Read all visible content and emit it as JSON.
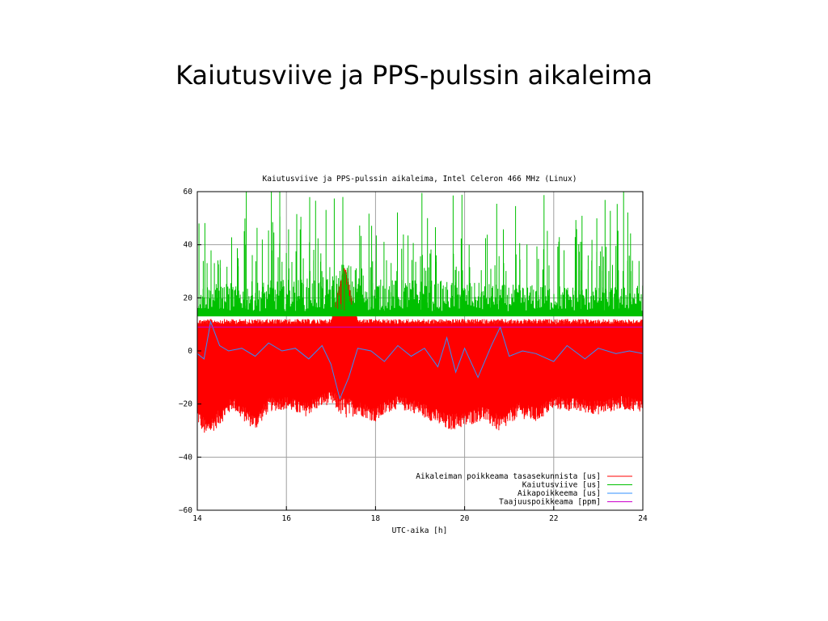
{
  "slide": {
    "title": "Kaiutusviive ja PPS-pulssin aikaleima"
  },
  "chart_data": {
    "type": "line",
    "title": "Kaiutusviive ja PPS-pulssin aikaleima, Intel Celeron 466 MHz (Linux)",
    "xlabel": "UTC-aika [h]",
    "ylabel": "",
    "xlim": [
      14,
      24
    ],
    "ylim": [
      -60,
      60
    ],
    "xticks": [
      14,
      16,
      18,
      20,
      22,
      24
    ],
    "yticks": [
      -60,
      -40,
      -20,
      0,
      20,
      40,
      60
    ],
    "grid": true,
    "legend_position": "bottom-right",
    "series": [
      {
        "name": "Aikaleiman poikkeama tasasekunnista [us]",
        "color": "#ff0000",
        "style": "dense noise band",
        "x": [
          14.0,
          14.2,
          14.5,
          14.8,
          15.0,
          15.3,
          15.6,
          16.0,
          16.4,
          16.8,
          17.0,
          17.3,
          17.6,
          18.0,
          18.4,
          18.8,
          19.2,
          19.6,
          20.0,
          20.4,
          20.8,
          21.2,
          21.6,
          22.0,
          22.5,
          23.0,
          23.5,
          24.0
        ],
        "upper": [
          12,
          12,
          12,
          12,
          12,
          12,
          12,
          12,
          12,
          12,
          12,
          33,
          12,
          12,
          12,
          12,
          12,
          12,
          12,
          12,
          12,
          12,
          12,
          12,
          12,
          12,
          12,
          12
        ],
        "lower": [
          -27,
          -33,
          -28,
          -22,
          -26,
          -30,
          -23,
          -22,
          -25,
          -21,
          -20,
          -26,
          -24,
          -27,
          -22,
          -23,
          -26,
          -30,
          -29,
          -26,
          -31,
          -25,
          -27,
          -22,
          -23,
          -24,
          -22,
          -23
        ]
      },
      {
        "name": "Kaiutusviive [us]",
        "color": "#00c000",
        "style": "dense noise band with spikes",
        "x": [
          14.0,
          15.0,
          16.0,
          17.0,
          17.3,
          18.0,
          19.0,
          20.0,
          21.0,
          22.0,
          23.0,
          24.0
        ],
        "upper": [
          25,
          26,
          27,
          28,
          34,
          27,
          27,
          26,
          25,
          25,
          24,
          25
        ],
        "lower": [
          13,
          13,
          13,
          13,
          13,
          13,
          13,
          13,
          13,
          13,
          13,
          13
        ],
        "spike_max": 60
      },
      {
        "name": "Aikapoikkeema [us]",
        "color": "#3090ff",
        "x": [
          14.0,
          14.15,
          14.3,
          14.5,
          14.7,
          15.0,
          15.3,
          15.6,
          15.9,
          16.2,
          16.5,
          16.8,
          17.0,
          17.2,
          17.4,
          17.6,
          17.9,
          18.2,
          18.5,
          18.8,
          19.1,
          19.4,
          19.6,
          19.8,
          20.0,
          20.3,
          20.6,
          20.8,
          21.0,
          21.3,
          21.6,
          22.0,
          22.3,
          22.7,
          23.0,
          23.4,
          23.7,
          24.0
        ],
        "y": [
          -1,
          -3,
          11,
          2,
          0,
          1,
          -2,
          3,
          0,
          1,
          -3,
          2,
          -5,
          -18,
          -10,
          1,
          0,
          -4,
          2,
          -2,
          1,
          -6,
          5,
          -8,
          1,
          -10,
          2,
          9,
          -2,
          0,
          -1,
          -4,
          2,
          -3,
          1,
          -1,
          0,
          -1
        ]
      },
      {
        "name": "Taajuuspoikkeama [ppm]",
        "color": "#cc00cc",
        "x": [
          14,
          24
        ],
        "y": [
          9,
          9
        ]
      }
    ]
  }
}
